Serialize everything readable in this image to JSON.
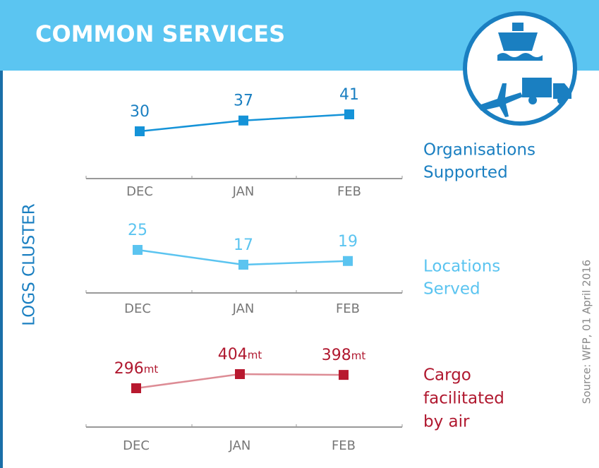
{
  "title": "COMMON SERVICES",
  "side_label": "LOGS CLUSTER",
  "source": "Source: WFP, 01 April 2016",
  "chart_data": [
    {
      "type": "line",
      "label": [
        "Organisations",
        "Supported"
      ],
      "categories": [
        "DEC",
        "JAN",
        "FEB"
      ],
      "values": [
        30,
        37,
        41
      ],
      "color": "#1593d8",
      "label_color": "#1a7fc1"
    },
    {
      "type": "line",
      "label": [
        "Locations",
        "Served"
      ],
      "categories": [
        "DEC",
        "JAN",
        "FEB"
      ],
      "values": [
        25,
        17,
        19
      ],
      "color": "#5bc4f0",
      "label_color": "#5bc4f0"
    },
    {
      "type": "line",
      "label": [
        "Cargo",
        "facilitated",
        "by air"
      ],
      "categories": [
        "DEC",
        "JAN",
        "FEB"
      ],
      "values": [
        296,
        404,
        398
      ],
      "unit": "mt",
      "color": "#b8192f",
      "line_color": "#dd8c95",
      "label_color": "#b0182f"
    }
  ]
}
